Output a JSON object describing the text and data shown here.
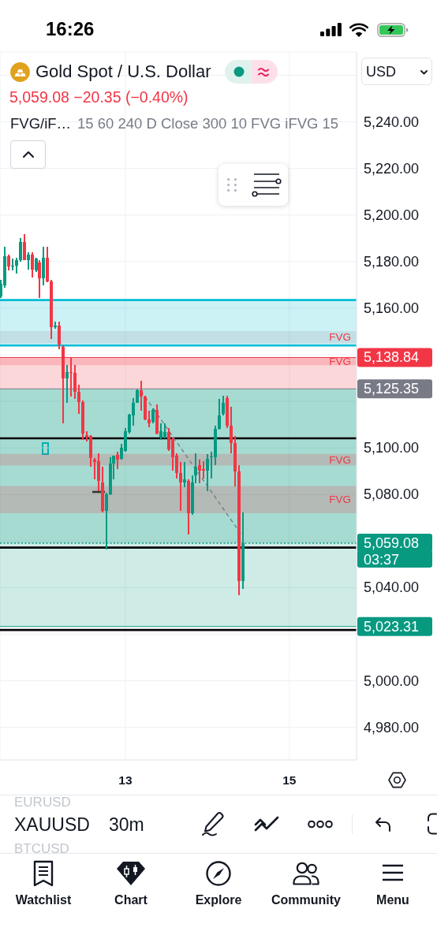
{
  "chart_data": {
    "type": "candlestick",
    "title": "Gold Spot / U.S. Dollar",
    "subtitle": "5,059.08 −20.35 (−0.40%)",
    "annotations": [
      "16:26",
      "USD",
      "FVG/iF…",
      "15 60 240 D Close 300 10 FVG iFVG 15",
      "03:37",
      "EURUSD",
      "XAUUSD",
      "BTCUSD",
      "30m",
      "Watchlist",
      "Chart",
      "Explore",
      "Community",
      "Menu"
    ],
    "x": [
      11.476,
      11.524,
      11.571,
      11.619,
      11.667,
      11.714,
      11.762,
      11.81,
      11.857,
      11.905,
      11.952,
      12,
      12.048,
      12.095,
      12.143,
      12.19,
      12.238,
      12.286,
      12.333,
      12.381,
      12.429,
      12.476,
      12.524,
      12.571,
      12.619,
      12.667,
      12.714,
      12.762,
      12.81,
      12.857,
      12.905,
      12.952,
      13,
      13.048,
      13.095,
      13.143,
      13.19,
      13.238,
      13.286,
      13.333,
      13.381,
      13.429,
      13.476,
      13.524,
      13.571,
      13.619,
      13.667,
      13.714,
      13.762,
      13.81,
      13.857,
      13.905,
      13.952,
      14,
      14.048,
      14.095,
      14.143,
      14.19,
      14.238,
      14.286,
      14.333,
      14.381,
      14.429
    ],
    "ohlc": [
      [
        5164.9,
        5172.2,
        5164.3,
        5170.5
      ],
      [
        5169.9,
        5186.3,
        5168.8,
        5182.3
      ],
      [
        5182.3,
        5182.9,
        5176.1,
        5177.8
      ],
      [
        5177.8,
        5181.2,
        5176.1,
        5178.4
      ],
      [
        5178.4,
        5181.8,
        5175.0,
        5180.7
      ],
      [
        5180.7,
        5190.2,
        5180.1,
        5188.5
      ],
      [
        5188.5,
        5191.9,
        5180.5,
        5180.7
      ],
      [
        5180.7,
        5184.0,
        5176.7,
        5182.9
      ],
      [
        5182.9,
        5184.0,
        5173.3,
        5176.7
      ],
      [
        5176.1,
        5181.8,
        5175.6,
        5181.2
      ],
      [
        5179.5,
        5180.7,
        5164.3,
        5172.8
      ],
      [
        5172.8,
        5186.3,
        5169.9,
        5181.8
      ],
      [
        5181.8,
        5186.3,
        5171.0,
        5171.6
      ],
      [
        5171.6,
        5172.0,
        5146.8,
        5151.9
      ],
      [
        5151.9,
        5154.1,
        5151.3,
        5152.4
      ],
      [
        5152.4,
        5154.1,
        5142.3,
        5144.5
      ],
      [
        5143.4,
        5144.0,
        5110.7,
        5129.9
      ],
      [
        5129.9,
        5135.5,
        5119.2,
        5132.7
      ],
      [
        5132.7,
        5138.9,
        5122.0,
        5132.1
      ],
      [
        5132.1,
        5135.5,
        5120.9,
        5124.2
      ],
      [
        5124.2,
        5127.1,
        5114.7,
        5119.7
      ],
      [
        5119.7,
        5120.3,
        5103.4,
        5106.2
      ],
      [
        5105.6,
        5107.3,
        5102.8,
        5104.5
      ],
      [
        5105.0,
        5105.6,
        5092.1,
        5095.5
      ],
      [
        5094.9,
        5095.5,
        5086.4,
        5093.8
      ],
      [
        5094.3,
        5097.7,
        5081.4,
        5085.9
      ],
      [
        5085.3,
        5092.1,
        5072.3,
        5072.9
      ],
      [
        5072.9,
        5080.8,
        5056.5,
        5080.2
      ],
      [
        5080.2,
        5096.0,
        5079.7,
        5093.2
      ],
      [
        5093.2,
        5096.8,
        5086.4,
        5096.6
      ],
      [
        5096.9,
        5098.5,
        5091.0,
        5094.9
      ],
      [
        5095.4,
        5101.7,
        5094.9,
        5100.0
      ],
      [
        5098.8,
        5108.4,
        5098.3,
        5107.3
      ],
      [
        5106.7,
        5114.6,
        5106.2,
        5114.3
      ],
      [
        5114.1,
        5121.4,
        5109.6,
        5119.4
      ],
      [
        5119.4,
        5125.2,
        5119.2,
        5124.8
      ],
      [
        5124.8,
        5129.0,
        5115.8,
        5122.0
      ],
      [
        5122.0,
        5122.5,
        5111.8,
        5112.4
      ],
      [
        5112.4,
        5115.8,
        5109.0,
        5110.7
      ],
      [
        5111.3,
        5116.9,
        5110.7,
        5116.3
      ],
      [
        5116.3,
        5118.6,
        5105.8,
        5106.2
      ],
      [
        5104.5,
        5110.7,
        5103.4,
        5107.3
      ],
      [
        5104.8,
        5110.7,
        5104.0,
        5106.7
      ],
      [
        5106.7,
        5108.4,
        5098.8,
        5099.4
      ],
      [
        5103.9,
        5104.5,
        5090.4,
        5096.0
      ],
      [
        5096.6,
        5097.7,
        5087.0,
        5089.3
      ],
      [
        5089.3,
        5093.8,
        5072.9,
        5085.3
      ],
      [
        5085.3,
        5093.8,
        5083.1,
        5086.4
      ],
      [
        5085.9,
        5086.4,
        5062.7,
        5071.8
      ],
      [
        5071.8,
        5088.1,
        5071.2,
        5085.3
      ],
      [
        5088.1,
        5097.7,
        5084.7,
        5092.1
      ],
      [
        5092.6,
        5094.9,
        5084.7,
        5090.4
      ],
      [
        5090.9,
        5094.3,
        5087.0,
        5090.4
      ],
      [
        5090.4,
        5097.2,
        5081.4,
        5095.4
      ],
      [
        5096.0,
        5098.3,
        5087.0,
        5096.3
      ],
      [
        5096.0,
        5109.6,
        5092.6,
        5108.2
      ],
      [
        5108.2,
        5120.9,
        5107.9,
        5114.1
      ],
      [
        5114.6,
        5122.5,
        5114.1,
        5119.2
      ],
      [
        5121.4,
        5122.5,
        5108.4,
        5109.6
      ],
      [
        5109.6,
        5117.5,
        5097.7,
        5102.2
      ],
      [
        5102.2,
        5105.1,
        5083.6,
        5089.8
      ],
      [
        5089.8,
        5092.6,
        5036.8,
        5043.0
      ],
      [
        5043.0,
        5072.3,
        5039.6,
        5059.08
      ]
    ],
    "colors": [
      "#089981",
      "#089981",
      "#f23645",
      "#089981",
      "#089981",
      "#089981",
      "#f23645",
      "#089981",
      "#f23645",
      "#089981",
      "#f23645",
      "#089981",
      "#f23645",
      "#f23645",
      "#089981",
      "#f23645",
      "#f23645",
      "#089981",
      "#f23645",
      "#f23645",
      "#f23645",
      "#f23645",
      "#f23645",
      "#f23645",
      "#f23645",
      "#f23645",
      "#f23645",
      "#089981",
      "#089981",
      "#089981",
      "#f23645",
      "#089981",
      "#089981",
      "#089981",
      "#089981",
      "#089981",
      "#f23645",
      "#f23645",
      "#f23645",
      "#089981",
      "#f23645",
      "#089981",
      "#089981",
      "#f23645",
      "#f23645",
      "#f23645",
      "#f23645",
      "#089981",
      "#f23645",
      "#089981",
      "#089981",
      "#f23645",
      "#f23645",
      "#089981",
      "#089981",
      "#089981",
      "#089981",
      "#089981",
      "#f23645",
      "#f23645",
      "#f23645",
      "#f23645",
      "#089981"
    ],
    "series": [
      {
        "type": "line",
        "x": [
          13.19,
          14.42
        ],
        "values": [
          5124.5,
          5062.5
        ],
        "color": "#787b86",
        "line_style": "dashed"
      }
    ],
    "xlim": [
      11.47,
      15.82
    ],
    "xticks": [
      13,
      15
    ],
    "ylim": [
      4966,
      5270
    ],
    "yticks": [
      {
        "value": 5260,
        "label": null
      },
      {
        "value": 5240,
        "label": "5,240.00"
      },
      {
        "value": 5220,
        "label": "5,220.00"
      },
      {
        "value": 5200,
        "label": "5,200.00"
      },
      {
        "value": 5180,
        "label": "5,180.00"
      },
      {
        "value": 5160,
        "label": "5,160.00"
      },
      {
        "value": 5140,
        "label": null
      },
      {
        "value": 5120,
        "label": null
      },
      {
        "value": 5100,
        "label": "5,100.00"
      },
      {
        "value": 5080,
        "label": "5,080.00"
      },
      {
        "value": 5060,
        "label": null
      },
      {
        "value": 5040,
        "label": "5,040.00"
      },
      {
        "value": 5020,
        "label": null
      },
      {
        "value": 5000,
        "label": "5,000.00"
      },
      {
        "value": 4980,
        "label": "4,980.00"
      }
    ],
    "grid": true,
    "bands": [
      {
        "axis": "y",
        "from": 5144,
        "to": 5163.5,
        "color": "#00bcd4"
      },
      {
        "axis": "y",
        "from": 5125.35,
        "to": 5138.84,
        "color": "#f23645"
      },
      {
        "axis": "y",
        "from": 5023.31,
        "to": 5125.35,
        "color": "#089981"
      },
      {
        "axis": "y",
        "from": 5059.08,
        "to": 5125.35,
        "color": "#089981"
      },
      {
        "axis": "y",
        "from": 5144.8,
        "to": 5150.2,
        "color": "#9598a1",
        "label": "FVG"
      },
      {
        "axis": "y",
        "from": 5135.5,
        "to": 5138.9,
        "color": "#f23645",
        "label": "FVG"
      },
      {
        "axis": "y",
        "from": 5092.4,
        "to": 5097.4,
        "color": "#f23645",
        "label": "FVG"
      },
      {
        "axis": "y",
        "from": 5072,
        "to": 5083.6,
        "color": "#f23645",
        "label": "FVG"
      }
    ],
    "ref_lines": [
      {
        "axis": "y",
        "value": 5104.1,
        "color": "#000000"
      },
      {
        "axis": "y",
        "value": 5057.2,
        "color": "#000000"
      },
      {
        "axis": "y",
        "value": 5021.8,
        "color": "#000000"
      },
      {
        "axis": "y",
        "value": 5163.5,
        "color": "#00bcd4"
      },
      {
        "axis": "y",
        "value": 5144,
        "color": "#00bcd4"
      },
      {
        "axis": "y",
        "value": 5059.08,
        "label": "5,059.08",
        "color": "#089981",
        "line_style": "dotted"
      },
      {
        "axis": "y",
        "value": 5138.84,
        "label": "5,138.84",
        "color": "#f23645"
      },
      {
        "axis": "y",
        "value": 5125.35,
        "label": "5,125.35",
        "color": "#787b86"
      },
      {
        "axis": "y",
        "value": 5023.31,
        "label": "5,023.31",
        "color": "#089981"
      }
    ]
  }
}
